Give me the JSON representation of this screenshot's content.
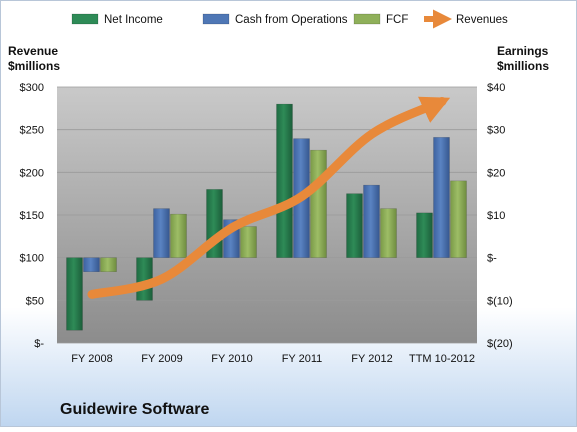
{
  "colors": {
    "net_income": "#2e8b57",
    "cash_from_operations": "#4f77b5",
    "fcf": "#8fb05a",
    "revenues": "#e8893a",
    "background_top": "#ffffff",
    "background_bottom": "#bfd6f0",
    "plot_top": "#c9c9c9",
    "plot_bottom": "#8c8c8c"
  },
  "chart_data": {
    "type": "bar",
    "title": "",
    "company": "Guidewire Software",
    "categories": [
      "FY 2008",
      "FY 2009",
      "FY 2010",
      "FY 2011",
      "FY 2012",
      "TTM 10-2012"
    ],
    "left_axis": {
      "label_line1": "Revenue",
      "label_line2": "$millions",
      "ylim": [
        0,
        300
      ],
      "ticks": [
        0,
        50,
        100,
        150,
        200,
        250,
        300
      ],
      "tick_labels": [
        "$-",
        "$50",
        "$100",
        "$150",
        "$200",
        "$250",
        "$300"
      ]
    },
    "right_axis": {
      "label_line1": "Earnings",
      "label_line2": "$millions",
      "ylim": [
        -20,
        40
      ],
      "ticks": [
        -20,
        -10,
        0,
        10,
        20,
        30,
        40
      ],
      "tick_labels": [
        "$(20)",
        "$(10)",
        "$-",
        "$10",
        "$20",
        "$30",
        "$40"
      ]
    },
    "series": [
      {
        "name": "Net Income",
        "axis": "right",
        "kind": "bar",
        "values": [
          -17,
          -10,
          16,
          36,
          15,
          10.5
        ]
      },
      {
        "name": "Cash from Operations",
        "axis": "right",
        "kind": "bar",
        "values": [
          -3.3,
          11.5,
          8.9,
          27.9,
          17,
          28.2
        ]
      },
      {
        "name": "FCF",
        "axis": "right",
        "kind": "bar",
        "values": [
          -3.3,
          10.2,
          7.3,
          25.2,
          11.5,
          18
        ]
      },
      {
        "name": "Revenues",
        "axis": "left",
        "kind": "line",
        "values": [
          57,
          75,
          135,
          172,
          245,
          283
        ]
      }
    ],
    "legend": [
      "Net Income",
      "Cash from Operations",
      "FCF",
      "Revenues"
    ],
    "legend_position": "top",
    "grid": true
  }
}
